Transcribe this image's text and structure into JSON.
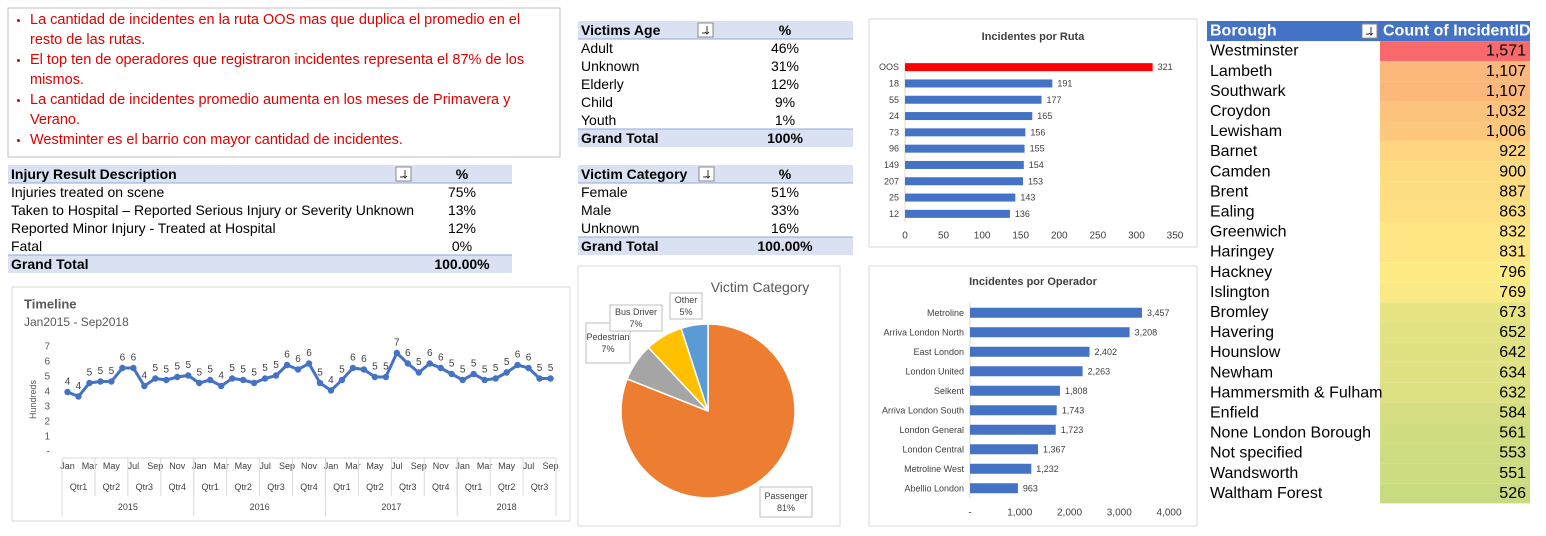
{
  "notes": [
    "La cantidad de incidentes en la ruta OOS mas que duplica el promedio en el resto de las rutas.",
    "El top ten de operadores que registraron incidentes representa el 87% de los mismos.",
    "La cantidad de incidentes promedio aumenta en los meses de Primavera y Verano.",
    "Westminter es el barrio con mayor cantidad de incidentes."
  ],
  "injury_table": {
    "headers": [
      "Injury Result Description",
      "%"
    ],
    "rows": [
      [
        "Injuries treated on scene",
        "75%"
      ],
      [
        "Taken to Hospital – Reported Serious Injury or Severity Unknown",
        "13%"
      ],
      [
        "Reported Minor Injury - Treated at Hospital",
        "12%"
      ],
      [
        "Fatal",
        "0%"
      ]
    ],
    "total": [
      "Grand Total",
      "100.00%"
    ]
  },
  "age_table": {
    "headers": [
      "Victims Age",
      "%"
    ],
    "rows": [
      [
        "Adult",
        "46%"
      ],
      [
        "Unknown",
        "31%"
      ],
      [
        "Elderly",
        "12%"
      ],
      [
        "Child",
        "9%"
      ],
      [
        "Youth",
        "1%"
      ]
    ],
    "total": [
      "Grand Total",
      "100%"
    ]
  },
  "category_table": {
    "headers": [
      "Victim Category",
      "%"
    ],
    "rows": [
      [
        "Female",
        "51%"
      ],
      [
        "Male",
        "33%"
      ],
      [
        "Unknown",
        "16%"
      ]
    ],
    "total": [
      "Grand Total",
      "100.00%"
    ]
  },
  "borough_table": {
    "headers": [
      "Borough",
      "Count of IncidentID"
    ],
    "categories": [
      "Westminster",
      "Lambeth",
      "Southwark",
      "Croydon",
      "Lewisham",
      "Barnet",
      "Camden",
      "Brent",
      "Ealing",
      "Greenwich",
      "Haringey",
      "Hackney",
      "Islington",
      "Bromley",
      "Havering",
      "Hounslow",
      "Newham",
      "Hammersmith & Fulham",
      "Enfield",
      "None London Borough",
      "Not specified",
      "Wandsworth",
      "Waltham Forest"
    ],
    "values": [
      1571,
      1107,
      1107,
      1032,
      1006,
      922,
      900,
      887,
      863,
      832,
      831,
      796,
      769,
      673,
      652,
      642,
      634,
      632,
      584,
      561,
      553,
      551,
      526
    ],
    "value_labels": [
      "1,571",
      "1,107",
      "1,107",
      "1,032",
      "1,006",
      "922",
      "900",
      "887",
      "863",
      "832",
      "831",
      "796",
      "769",
      "673",
      "652",
      "642",
      "634",
      "632",
      "584",
      "561",
      "553",
      "551",
      "526"
    ],
    "color_scale": [
      "#F8696B",
      "#FFEB84",
      "#C9DB81"
    ]
  },
  "chart_data": [
    {
      "type": "line",
      "title": "Timeline",
      "subtitle": "Jan2015 - Sep2018",
      "y_label": "Hundreds",
      "categories": [
        "Jan",
        null,
        "Mar",
        null,
        "May",
        null,
        "Jul",
        null,
        "Sep",
        null,
        "Nov",
        null,
        "Jan",
        null,
        "Mar",
        null,
        "May",
        null,
        "Jul",
        null,
        "Sep",
        null,
        "Nov",
        null,
        "Jan",
        null,
        "Mar",
        null,
        "May",
        null,
        "Jul",
        null,
        "Sep",
        null,
        "Nov",
        null,
        "Jan",
        null,
        "Mar",
        null,
        "May",
        null,
        "Jul",
        null,
        "Sep"
      ],
      "quarters": [
        "Qtr1",
        "Qtr2",
        "Qtr3",
        "Qtr4",
        "Qtr1",
        "Qtr2",
        "Qtr3",
        "Qtr4",
        "Qtr1",
        "Qtr2",
        "Qtr3",
        "Qtr4",
        "Qtr1",
        "Qtr2",
        "Qtr3"
      ],
      "years": [
        "2015",
        "2016",
        "2017",
        "2018"
      ],
      "values": [
        4.0,
        3.7,
        4.6,
        4.7,
        4.7,
        5.6,
        5.6,
        4.4,
        4.9,
        4.8,
        5.0,
        5.1,
        4.6,
        4.8,
        4.4,
        4.9,
        4.8,
        4.6,
        4.9,
        5.1,
        5.8,
        5.5,
        5.9,
        4.6,
        4.1,
        4.8,
        5.6,
        5.5,
        5.0,
        5.0,
        6.6,
        5.9,
        5.3,
        5.9,
        5.6,
        5.2,
        4.8,
        5.2,
        4.8,
        4.9,
        5.3,
        5.8,
        5.6,
        4.9,
        4.9
      ],
      "value_labels": [
        "4",
        "4",
        "5",
        "5",
        "5",
        "6",
        "6",
        "4",
        "5",
        "5",
        "5",
        "5",
        "5",
        "5",
        "4",
        "5",
        "5",
        "5",
        "5",
        "5",
        "6",
        "6",
        "6",
        "5",
        "4",
        "5",
        "6",
        "6",
        "5",
        "5",
        "7",
        "6",
        "5",
        "6",
        "6",
        "5",
        "5",
        "5",
        "5",
        "5",
        "5",
        "6",
        "6",
        "5",
        "5"
      ],
      "color": "#4472C4",
      "ylim": [
        0,
        7
      ],
      "yticks": [
        {
          "value": 0,
          "label": "-"
        },
        1,
        2,
        3,
        4,
        5,
        6,
        7
      ],
      "grid": false
    },
    {
      "type": "pie",
      "title": "Victim Category",
      "categories": [
        "Passenger",
        "Pedestrian",
        "Bus Driver",
        "Other"
      ],
      "values": [
        81,
        7,
        7,
        5
      ],
      "value_labels": [
        "81%",
        "7%",
        "7%",
        "5%"
      ],
      "colors": [
        "#ED7D31",
        "#A5A5A5",
        "#FFC000",
        "#5B9BD5"
      ]
    },
    {
      "type": "hbar",
      "title": "Incidentes por Ruta",
      "categories": [
        "OOS",
        "18",
        "55",
        "24",
        "73",
        "96",
        "149",
        "207",
        "25",
        "12"
      ],
      "values": [
        321,
        191,
        177,
        165,
        156,
        155,
        154,
        153,
        143,
        136
      ],
      "colors": [
        "#FF0000",
        "#4472C4",
        "#4472C4",
        "#4472C4",
        "#4472C4",
        "#4472C4",
        "#4472C4",
        "#4472C4",
        "#4472C4",
        "#4472C4"
      ],
      "xlim": [
        0,
        350
      ],
      "xticks": [
        0,
        50,
        100,
        150,
        200,
        250,
        300,
        350
      ]
    },
    {
      "type": "hbar",
      "title": "Incidentes por Operador",
      "categories": [
        "Metroline",
        "Arriva London North",
        "East London",
        "London United",
        "Selkent",
        "Arriva London South",
        "London General",
        "London Central",
        "Metroline West",
        "Abellio London"
      ],
      "values": [
        3457,
        3208,
        2402,
        2263,
        1808,
        1743,
        1723,
        1367,
        1232,
        963
      ],
      "value_labels": [
        "3,457",
        "3,208",
        "2,402",
        "2,263",
        "1,808",
        "1,743",
        "1,723",
        "1,367",
        "1,232",
        "963"
      ],
      "colors": [
        "#4472C4",
        "#4472C4",
        "#4472C4",
        "#4472C4",
        "#4472C4",
        "#4472C4",
        "#4472C4",
        "#4472C4",
        "#4472C4",
        "#4472C4"
      ],
      "xlim": [
        0,
        4000
      ],
      "xticks": [
        {
          "value": 0,
          "label": "-"
        },
        {
          "value": 1000,
          "label": "1,000"
        },
        {
          "value": 2000,
          "label": "2,000"
        },
        {
          "value": 3000,
          "label": "3,000"
        },
        {
          "value": 4000,
          "label": "4,000"
        }
      ]
    }
  ]
}
